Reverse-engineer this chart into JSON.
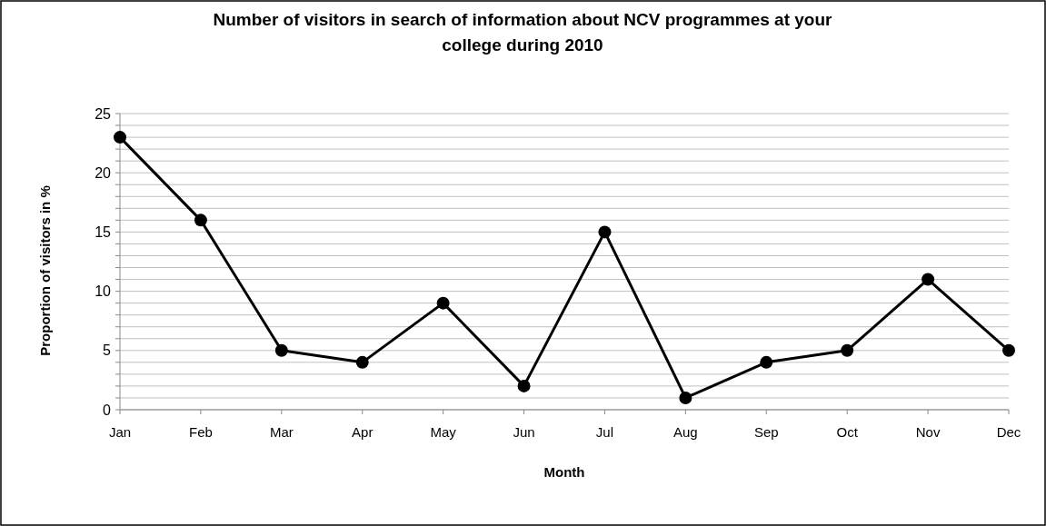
{
  "chart_data": {
    "type": "line",
    "title": "Number of visitors in search of information about NCV programmes at your college during 2010",
    "xlabel": "Month",
    "ylabel": "Proportion of visitors in %",
    "categories": [
      "Jan",
      "Feb",
      "Mar",
      "Apr",
      "May",
      "Jun",
      "Jul",
      "Aug",
      "Sep",
      "Oct",
      "Nov",
      "Dec"
    ],
    "series": [
      {
        "color": "#000000",
        "values": [
          23,
          16,
          5,
          4,
          9,
          2,
          15,
          1,
          4,
          5,
          11,
          5
        ]
      }
    ],
    "ylim": [
      0,
      25
    ],
    "yticks": [
      0,
      {
        "value": 1,
        "label": null
      },
      {
        "value": 2,
        "label": null
      },
      {
        "value": 3,
        "label": null
      },
      {
        "value": 4,
        "label": null
      },
      5,
      {
        "value": 6,
        "label": null
      },
      {
        "value": 7,
        "label": null
      },
      {
        "value": 8,
        "label": null
      },
      {
        "value": 9,
        "label": null
      },
      10,
      {
        "value": 11,
        "label": null
      },
      {
        "value": 12,
        "label": null
      },
      {
        "value": 13,
        "label": null
      },
      {
        "value": 14,
        "label": null
      },
      15,
      {
        "value": 16,
        "label": null
      },
      {
        "value": 17,
        "label": null
      },
      {
        "value": 18,
        "label": null
      },
      {
        "value": 19,
        "label": null
      },
      20,
      {
        "value": 21,
        "label": null
      },
      {
        "value": 22,
        "label": null
      },
      {
        "value": 23,
        "label": null
      },
      {
        "value": 24,
        "label": null
      },
      25
    ],
    "grid": "y",
    "marker": "circle",
    "line_style": "solid"
  }
}
